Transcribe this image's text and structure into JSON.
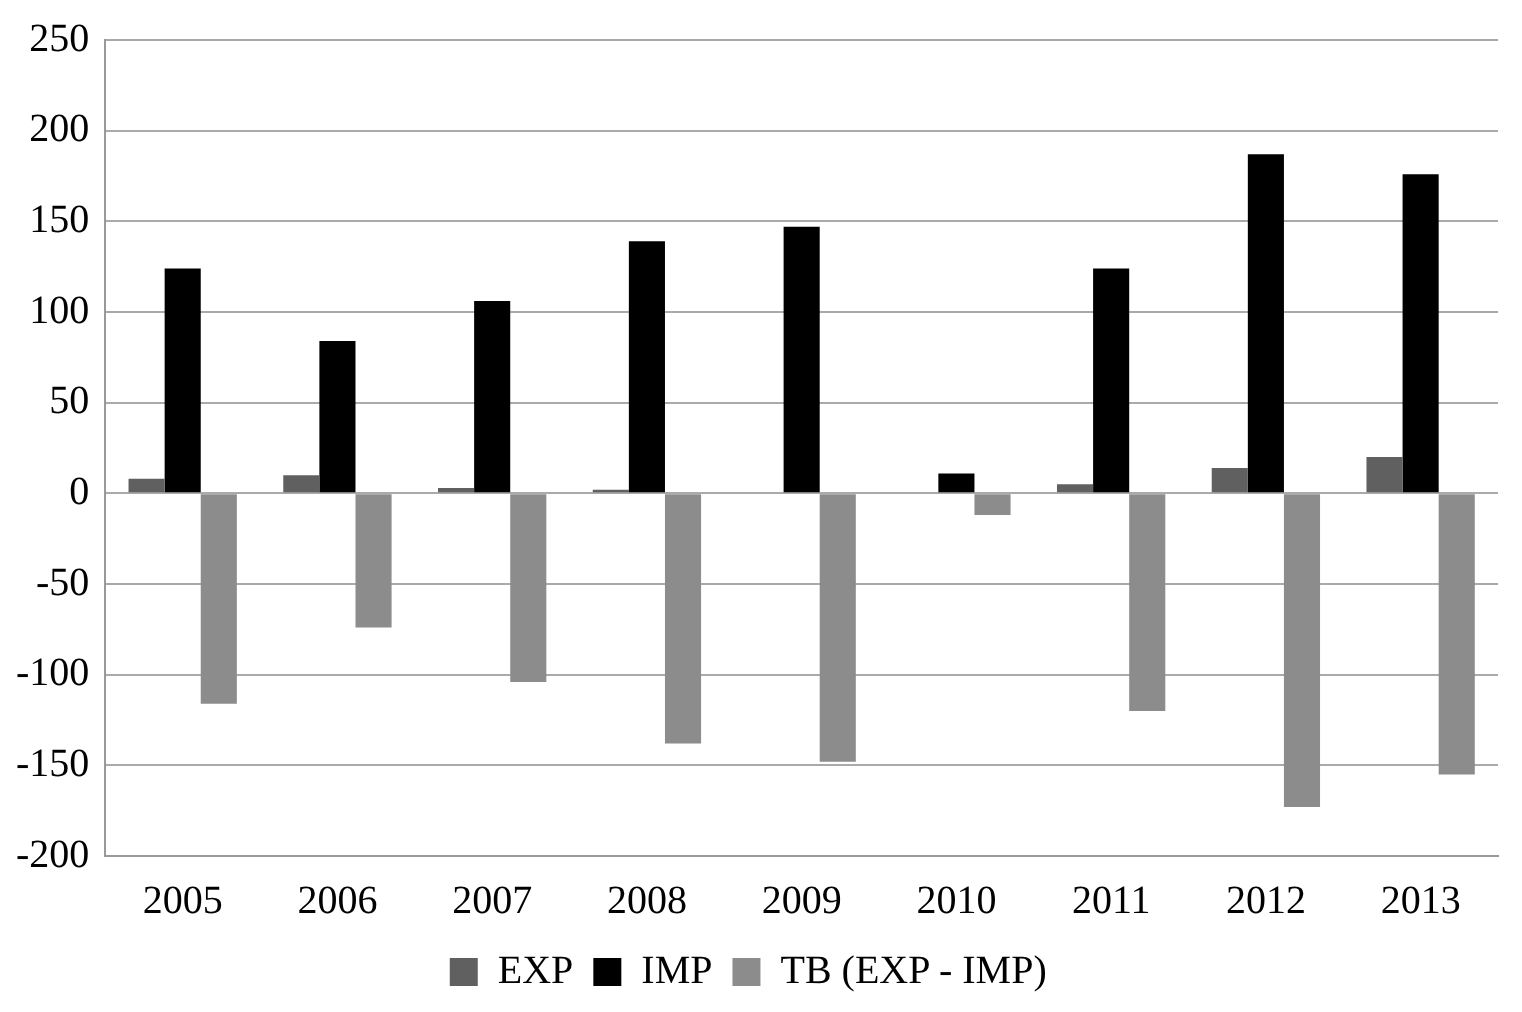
{
  "chart_data": {
    "type": "bar",
    "categories": [
      "2005",
      "2006",
      "2007",
      "2008",
      "2009",
      "2010",
      "2011",
      "2012",
      "2013"
    ],
    "series": [
      {
        "name": "EXP",
        "color": "#606060",
        "values": [
          8,
          10,
          3,
          2,
          0,
          0,
          5,
          14,
          20
        ]
      },
      {
        "name": "IMP",
        "color": "#000000",
        "values": [
          124,
          84,
          106,
          139,
          147,
          11,
          124,
          187,
          176
        ]
      },
      {
        "name": "TB (EXP - IMP)",
        "color": "#8c8c8c",
        "values": [
          -116,
          -74,
          -104,
          -138,
          -148,
          -12,
          -120,
          -173,
          -155
        ]
      }
    ],
    "ylim": [
      -200,
      250
    ],
    "yticks": [
      -200,
      -150,
      -100,
      -50,
      0,
      50,
      100,
      150,
      200,
      250
    ],
    "grid": "y",
    "legend": "bottom"
  }
}
